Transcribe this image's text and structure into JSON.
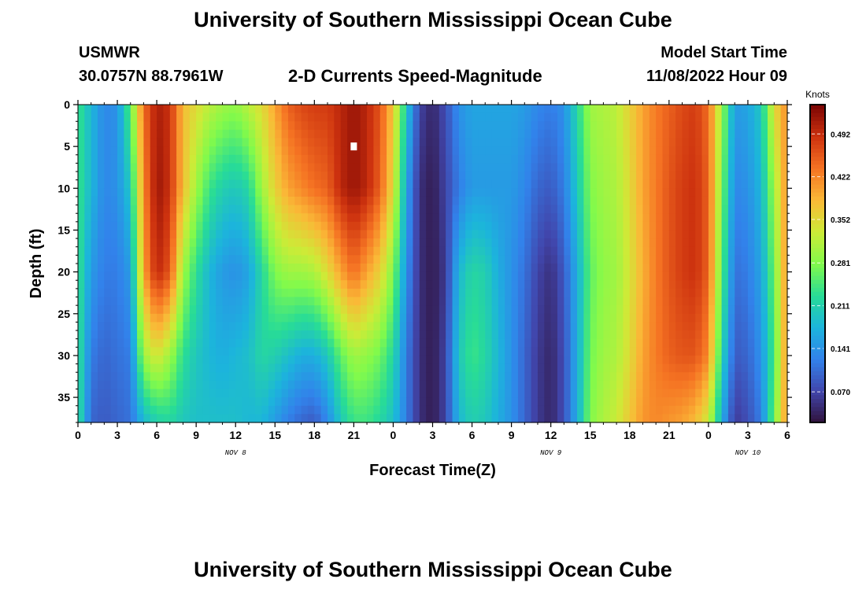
{
  "page": {
    "title_top": "University of Southern Mississippi Ocean Cube",
    "title_bottom": "University of Southern Mississippi Ocean Cube",
    "station_name": "USMWR",
    "station_coords": "30.0757N  88.7961W",
    "plot_title": "2-D Currents Speed-Magnitude",
    "model_start_label": "Model Start Time",
    "model_start_value": "11/08/2022 Hour 09"
  },
  "chart_data": {
    "type": "heatmap",
    "title": "2-D Currents Speed-Magnitude",
    "xlabel": "Forecast Time(Z)",
    "ylabel": "Depth (ft)",
    "x_range_hours": [
      0,
      54
    ],
    "x_ticks": [
      {
        "h": 0,
        "label": "0"
      },
      {
        "h": 3,
        "label": "3"
      },
      {
        "h": 6,
        "label": "6"
      },
      {
        "h": 9,
        "label": "9"
      },
      {
        "h": 12,
        "label": "12"
      },
      {
        "h": 15,
        "label": "15"
      },
      {
        "h": 18,
        "label": "18"
      },
      {
        "h": 21,
        "label": "21"
      },
      {
        "h": 24,
        "label": "0"
      },
      {
        "h": 27,
        "label": "3"
      },
      {
        "h": 30,
        "label": "6"
      },
      {
        "h": 33,
        "label": "9"
      },
      {
        "h": 36,
        "label": "12"
      },
      {
        "h": 39,
        "label": "15"
      },
      {
        "h": 42,
        "label": "18"
      },
      {
        "h": 45,
        "label": "21"
      },
      {
        "h": 48,
        "label": "0"
      },
      {
        "h": 51,
        "label": "3"
      },
      {
        "h": 54,
        "label": "6"
      }
    ],
    "date_labels": [
      {
        "h": 12,
        "label": "NOV 8"
      },
      {
        "h": 36,
        "label": "NOV 9"
      },
      {
        "h": 51,
        "label": "NOV 10"
      }
    ],
    "y_range_ft": [
      0,
      38
    ],
    "y_ticks": [
      0,
      5,
      10,
      15,
      20,
      25,
      30,
      35
    ],
    "colorbar": {
      "title": "Knots",
      "range": [
        0.02,
        0.54
      ],
      "ticks": [
        "0.492",
        "0.422",
        "0.352",
        "0.281",
        "0.211",
        "0.141",
        "0.070"
      ],
      "tick_values": [
        0.492,
        0.422,
        0.352,
        0.281,
        0.211,
        0.141,
        0.07
      ]
    },
    "marker": {
      "hour": 21,
      "depth_ft": 5
    },
    "depth_profiles_ft": [
      0,
      10,
      20,
      30,
      38
    ],
    "speed_knots_by_hour": [
      {
        "h": 0,
        "v": [
          0.24,
          0.24,
          0.24,
          0.24,
          0.24
        ]
      },
      {
        "h": 1,
        "v": [
          0.18,
          0.18,
          0.15,
          0.12,
          0.1
        ]
      },
      {
        "h": 2,
        "v": [
          0.13,
          0.13,
          0.12,
          0.1,
          0.09
        ]
      },
      {
        "h": 3,
        "v": [
          0.14,
          0.14,
          0.12,
          0.11,
          0.1
        ]
      },
      {
        "h": 4,
        "v": [
          0.26,
          0.2,
          0.15,
          0.12,
          0.11
        ]
      },
      {
        "h": 5,
        "v": [
          0.44,
          0.42,
          0.4,
          0.3,
          0.18
        ]
      },
      {
        "h": 6,
        "v": [
          0.51,
          0.52,
          0.5,
          0.34,
          0.21
        ]
      },
      {
        "h": 7,
        "v": [
          0.49,
          0.49,
          0.46,
          0.3,
          0.22
        ]
      },
      {
        "h": 8,
        "v": [
          0.38,
          0.38,
          0.3,
          0.23,
          0.2
        ]
      },
      {
        "h": 9,
        "v": [
          0.35,
          0.3,
          0.23,
          0.2,
          0.19
        ]
      },
      {
        "h": 10,
        "v": [
          0.32,
          0.24,
          0.18,
          0.18,
          0.19
        ]
      },
      {
        "h": 11,
        "v": [
          0.3,
          0.21,
          0.15,
          0.17,
          0.19
        ]
      },
      {
        "h": 12,
        "v": [
          0.29,
          0.2,
          0.14,
          0.18,
          0.19
        ]
      },
      {
        "h": 13,
        "v": [
          0.32,
          0.22,
          0.16,
          0.19,
          0.18
        ]
      },
      {
        "h": 14,
        "v": [
          0.35,
          0.3,
          0.22,
          0.22,
          0.18
        ]
      },
      {
        "h": 15,
        "v": [
          0.4,
          0.36,
          0.28,
          0.21,
          0.15
        ]
      },
      {
        "h": 16,
        "v": [
          0.45,
          0.4,
          0.3,
          0.19,
          0.12
        ]
      },
      {
        "h": 17,
        "v": [
          0.47,
          0.42,
          0.3,
          0.17,
          0.1
        ]
      },
      {
        "h": 18,
        "v": [
          0.48,
          0.44,
          0.31,
          0.17,
          0.09
        ]
      },
      {
        "h": 19,
        "v": [
          0.48,
          0.45,
          0.35,
          0.2,
          0.13
        ]
      },
      {
        "h": 20,
        "v": [
          0.5,
          0.5,
          0.4,
          0.26,
          0.2
        ]
      },
      {
        "h": 21,
        "v": [
          0.52,
          0.52,
          0.44,
          0.3,
          0.24
        ]
      },
      {
        "h": 22,
        "v": [
          0.5,
          0.5,
          0.4,
          0.29,
          0.24
        ]
      },
      {
        "h": 23,
        "v": [
          0.46,
          0.45,
          0.36,
          0.27,
          0.22
        ]
      },
      {
        "h": 24,
        "v": [
          0.37,
          0.35,
          0.28,
          0.22,
          0.19
        ]
      },
      {
        "h": 25,
        "v": [
          0.2,
          0.16,
          0.14,
          0.12,
          0.12
        ]
      },
      {
        "h": 26,
        "v": [
          0.07,
          0.05,
          0.05,
          0.05,
          0.05
        ]
      },
      {
        "h": 27,
        "v": [
          0.04,
          0.03,
          0.03,
          0.03,
          0.03
        ]
      },
      {
        "h": 28,
        "v": [
          0.08,
          0.07,
          0.06,
          0.07,
          0.07
        ]
      },
      {
        "h": 29,
        "v": [
          0.14,
          0.12,
          0.18,
          0.2,
          0.18
        ]
      },
      {
        "h": 30,
        "v": [
          0.16,
          0.15,
          0.22,
          0.24,
          0.21
        ]
      },
      {
        "h": 31,
        "v": [
          0.16,
          0.15,
          0.21,
          0.22,
          0.2
        ]
      },
      {
        "h": 32,
        "v": [
          0.16,
          0.15,
          0.17,
          0.18,
          0.17
        ]
      },
      {
        "h": 33,
        "v": [
          0.16,
          0.15,
          0.14,
          0.14,
          0.14
        ]
      },
      {
        "h": 34,
        "v": [
          0.15,
          0.13,
          0.11,
          0.1,
          0.1
        ]
      },
      {
        "h": 35,
        "v": [
          0.13,
          0.1,
          0.07,
          0.06,
          0.06
        ]
      },
      {
        "h": 36,
        "v": [
          0.12,
          0.09,
          0.05,
          0.04,
          0.04
        ]
      },
      {
        "h": 37,
        "v": [
          0.14,
          0.12,
          0.09,
          0.08,
          0.08
        ]
      },
      {
        "h": 38,
        "v": [
          0.22,
          0.2,
          0.17,
          0.17,
          0.17
        ]
      },
      {
        "h": 39,
        "v": [
          0.3,
          0.28,
          0.26,
          0.27,
          0.28
        ]
      },
      {
        "h": 40,
        "v": [
          0.31,
          0.3,
          0.29,
          0.3,
          0.31
        ]
      },
      {
        "h": 41,
        "v": [
          0.32,
          0.31,
          0.3,
          0.31,
          0.33
        ]
      },
      {
        "h": 42,
        "v": [
          0.36,
          0.35,
          0.34,
          0.35,
          0.37
        ]
      },
      {
        "h": 43,
        "v": [
          0.4,
          0.4,
          0.39,
          0.4,
          0.41
        ]
      },
      {
        "h": 44,
        "v": [
          0.43,
          0.43,
          0.43,
          0.43,
          0.42
        ]
      },
      {
        "h": 45,
        "v": [
          0.45,
          0.46,
          0.46,
          0.45,
          0.41
        ]
      },
      {
        "h": 46,
        "v": [
          0.47,
          0.48,
          0.48,
          0.46,
          0.4
        ]
      },
      {
        "h": 47,
        "v": [
          0.48,
          0.49,
          0.49,
          0.46,
          0.38
        ]
      },
      {
        "h": 48,
        "v": [
          0.44,
          0.45,
          0.45,
          0.42,
          0.33
        ]
      },
      {
        "h": 49,
        "v": [
          0.3,
          0.28,
          0.26,
          0.22,
          0.17
        ]
      },
      {
        "h": 50,
        "v": [
          0.15,
          0.13,
          0.11,
          0.09,
          0.06
        ]
      },
      {
        "h": 51,
        "v": [
          0.16,
          0.14,
          0.12,
          0.1,
          0.08
        ]
      },
      {
        "h": 52,
        "v": [
          0.2,
          0.18,
          0.16,
          0.14,
          0.12
        ]
      },
      {
        "h": 53,
        "v": [
          0.35,
          0.3,
          0.27,
          0.25,
          0.27
        ]
      },
      {
        "h": 54,
        "v": [
          0.42,
          0.42,
          0.42,
          0.42,
          0.42
        ]
      }
    ]
  }
}
